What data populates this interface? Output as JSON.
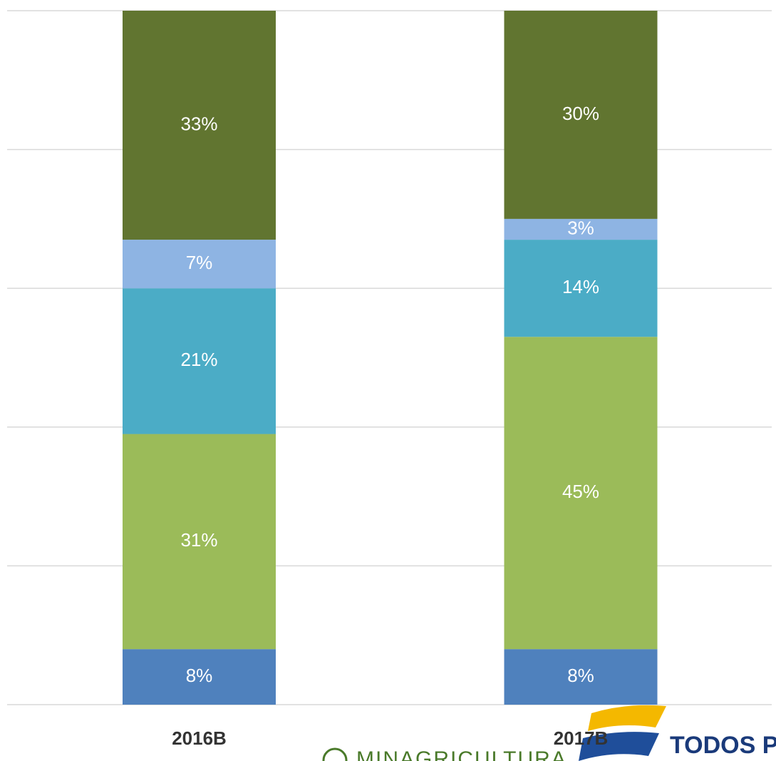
{
  "chart_data": {
    "type": "stacked_bar",
    "categories": [
      "2016B",
      "2017B"
    ],
    "series": [
      {
        "color": "#4f81bd",
        "values": [
          8,
          8
        ],
        "value_labels": [
          "8%",
          "8%"
        ]
      },
      {
        "color": "#9bbb59",
        "values": [
          31,
          45
        ],
        "value_labels": [
          "31%",
          "45%"
        ]
      },
      {
        "color": "#4bacc6",
        "values": [
          21,
          14
        ],
        "value_labels": [
          "21%",
          "14%"
        ]
      },
      {
        "color": "#8eb4e3",
        "values": [
          7,
          3
        ],
        "value_labels": [
          "7%",
          "3%"
        ]
      },
      {
        "color": "#617530",
        "values": [
          33,
          30
        ],
        "value_labels": [
          "33%",
          "30%"
        ]
      }
    ],
    "ylim": [
      0,
      100
    ],
    "yticks": [
      0,
      20,
      40,
      60,
      80,
      100
    ],
    "grid": true
  },
  "footer": {
    "left_logo": "MINAGRICULTURA",
    "right_logo": "TODOS P"
  }
}
